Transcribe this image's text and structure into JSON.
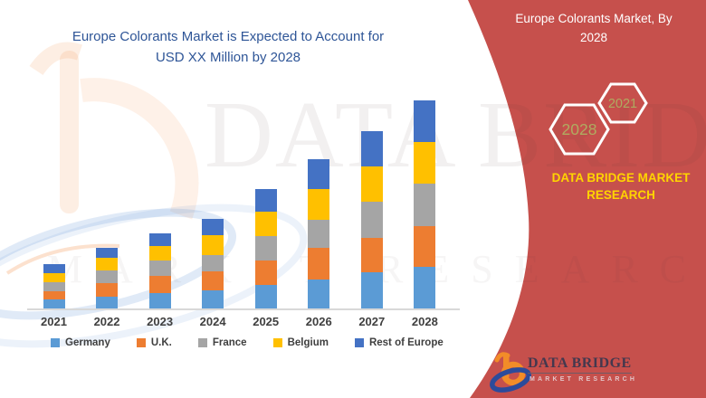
{
  "chart": {
    "title": "Europe Colorants Market is Expected to Account for USD XX Million by 2028"
  },
  "chart_data": {
    "type": "bar",
    "subtype": "stacked-column",
    "title": "Europe Colorants Market is Expected to Account for USD XX Million by 2028",
    "categories": [
      "2021",
      "2022",
      "2023",
      "2024",
      "2025",
      "2026",
      "2027",
      "2028"
    ],
    "series": [
      {
        "name": "Germany",
        "color": "#5B9BD5",
        "values": [
          10,
          13,
          17,
          20,
          26,
          32,
          40,
          46
        ]
      },
      {
        "name": "U.K.",
        "color": "#ED7D31",
        "values": [
          9,
          15,
          19,
          21,
          27,
          35,
          38,
          45
        ]
      },
      {
        "name": "France",
        "color": "#A5A5A5",
        "values": [
          10,
          14,
          17,
          18,
          27,
          31,
          40,
          47
        ]
      },
      {
        "name": "Belgium",
        "color": "#FFC000",
        "values": [
          10,
          14,
          16,
          22,
          27,
          34,
          39,
          46
        ]
      },
      {
        "name": "Rest of Europe",
        "color": "#4472C4",
        "values": [
          10,
          11,
          14,
          18,
          25,
          33,
          39,
          46
        ]
      }
    ],
    "stacked_totals": [
      49,
      67,
      83,
      99,
      132,
      165,
      196,
      230
    ],
    "value_axis": {
      "visible": false,
      "note": "values not labeled, shown as USD XX Million"
    },
    "xlabel": "",
    "ylabel": "",
    "grid": false,
    "legend_position": "bottom"
  },
  "banner": {
    "heading": "Europe Colorants Market, By 2028",
    "hexagons": [
      {
        "label": "2028"
      },
      {
        "label": "2021"
      }
    ],
    "brand_text": "DATA BRIDGE MARKET RESEARCH",
    "background_color": "#C6504C",
    "brand_text_color": "#FFD400",
    "hexagon_label_color": "#AFAB60"
  },
  "logo": {
    "name": "DATA BRIDGE",
    "subtitle": "MARKET RESEARCH"
  },
  "watermark": {
    "line1": "DATA BRIDGE",
    "line2": "MARKET RESEARCH"
  },
  "colors": {
    "chart_title": "#2E5597",
    "axis_text": "#3F3F3F",
    "axis_line": "#D8D8D8"
  }
}
